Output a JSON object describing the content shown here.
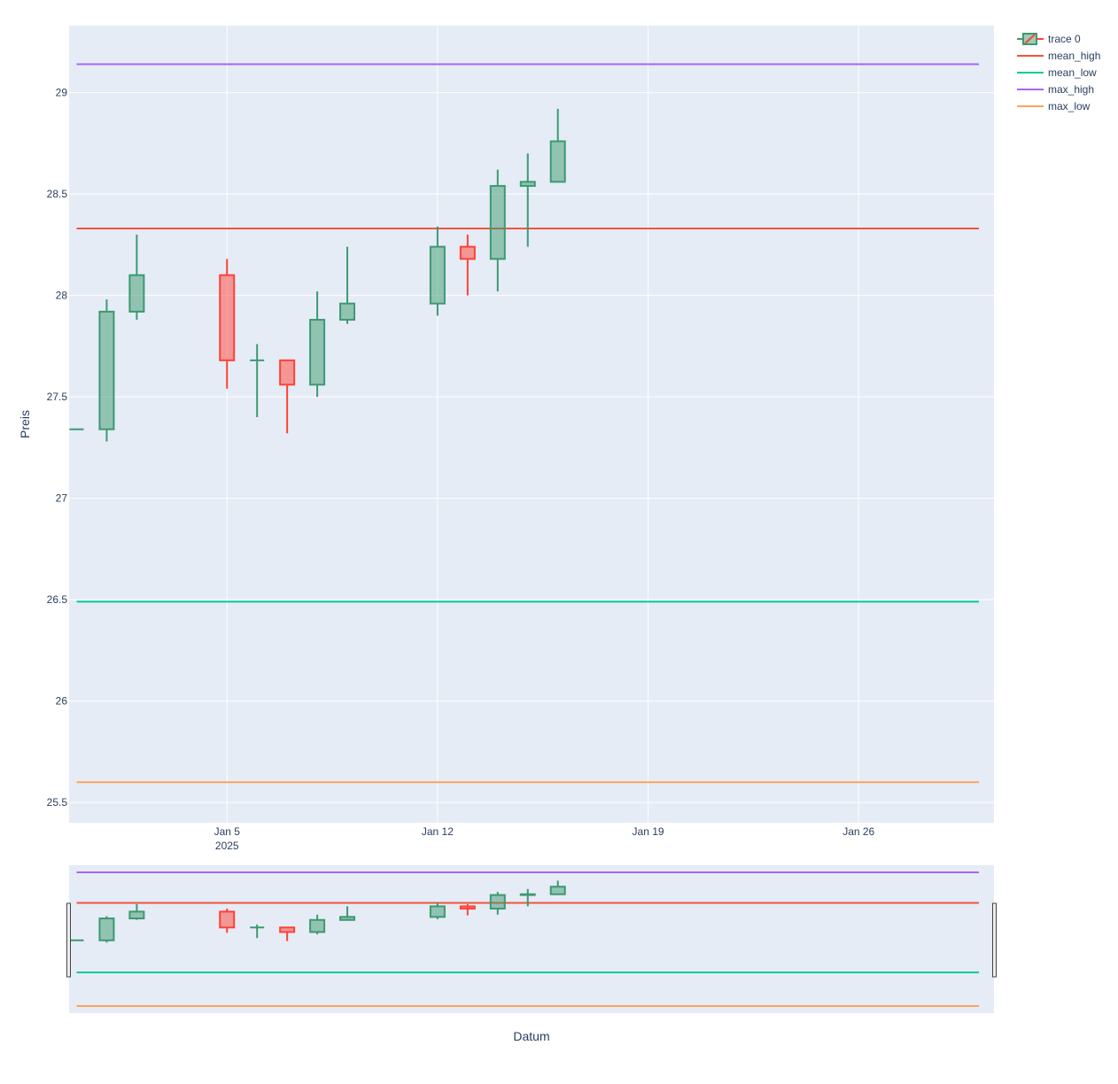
{
  "chart_data": {
    "type": "candlestick",
    "xlabel": "Datum",
    "ylabel": "Preis",
    "ylim": [
      25.4,
      29.33
    ],
    "x_range": [
      "2024-12-30T18:00",
      "2025-01-30T12:00"
    ],
    "x_ticks": [
      {
        "date": "2025-01-05",
        "label": "Jan 5",
        "sublabel": "2025"
      },
      {
        "date": "2025-01-12",
        "label": "Jan 12",
        "sublabel": ""
      },
      {
        "date": "2025-01-19",
        "label": "Jan 19",
        "sublabel": ""
      },
      {
        "date": "2025-01-26",
        "label": "Jan 26",
        "sublabel": ""
      }
    ],
    "y_ticks": [
      25.5,
      26,
      26.5,
      27,
      27.5,
      28,
      28.5,
      29
    ],
    "y_tick_labels": [
      "25.5",
      "26",
      "26.5",
      "27",
      "27.5",
      "28",
      "28.5",
      "29"
    ],
    "candles": {
      "name": "trace 0",
      "increasing_color": "#3d9970",
      "decreasing_color": "#ff4136",
      "dates": [
        "2024-12-31",
        "2025-01-01",
        "2025-01-02",
        "2025-01-05",
        "2025-01-06",
        "2025-01-07",
        "2025-01-08",
        "2025-01-09",
        "2025-01-12",
        "2025-01-13",
        "2025-01-14",
        "2025-01-15",
        "2025-01-16"
      ],
      "open": [
        27.34,
        27.34,
        27.92,
        28.1,
        27.68,
        27.68,
        27.56,
        27.88,
        27.96,
        28.24,
        28.18,
        28.54,
        28.56
      ],
      "high": [
        27.34,
        27.98,
        28.3,
        28.18,
        27.76,
        27.68,
        28.02,
        28.24,
        28.34,
        28.3,
        28.62,
        28.7,
        28.92
      ],
      "low": [
        27.34,
        27.28,
        27.88,
        27.54,
        27.4,
        27.32,
        27.5,
        27.86,
        27.9,
        28.0,
        28.02,
        28.24,
        28.56
      ],
      "close": [
        27.34,
        27.92,
        28.1,
        27.68,
        27.68,
        27.56,
        27.88,
        27.96,
        28.24,
        28.18,
        28.54,
        28.56,
        28.76
      ]
    },
    "hlines": [
      {
        "name": "mean_high",
        "value": 28.33,
        "color": "#ef553b"
      },
      {
        "name": "mean_low",
        "value": 26.49,
        "color": "#00cc96"
      },
      {
        "name": "max_high",
        "value": 29.14,
        "color": "#ab63fa"
      },
      {
        "name": "max_low",
        "value": 25.6,
        "color": "#ffa15a"
      }
    ],
    "hlines_x_range": [
      "2024-12-31",
      "2025-01-30"
    ],
    "grid": true,
    "legend_placement": "top-right",
    "rangeslider": true,
    "colors": {
      "plot_bg": "#e5ecf6",
      "grid": "#ffffff",
      "text": "#2a3f5f"
    }
  }
}
